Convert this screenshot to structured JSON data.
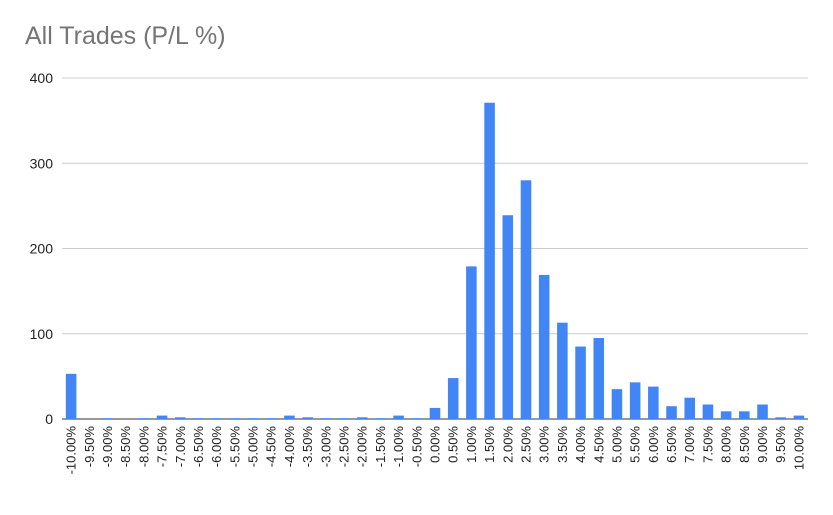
{
  "chart_data": {
    "type": "bar",
    "title": "All Trades (P/L %)",
    "xlabel": "",
    "ylabel": "",
    "ylim": [
      0,
      400
    ],
    "yticks": [
      "0",
      "100",
      "200",
      "300",
      "400"
    ],
    "grid": true,
    "bar_color": "#4285f4",
    "categories": [
      "-10.00%",
      "-9.50%",
      "-9.00%",
      "-8.50%",
      "-8.00%",
      "-7.50%",
      "-7.00%",
      "-6.50%",
      "-6.00%",
      "-5.50%",
      "-5.00%",
      "-4.50%",
      "-4.00%",
      "-3.50%",
      "-3.00%",
      "-2.50%",
      "-2.00%",
      "-1.50%",
      "-1.00%",
      "-0.50%",
      "0.00%",
      "0.50%",
      "1.00%",
      "1.50%",
      "2.00%",
      "2.50%",
      "3.00%",
      "3.50%",
      "4.00%",
      "4.50%",
      "5.00%",
      "5.50%",
      "6.00%",
      "6.50%",
      "7.00%",
      "7.50%",
      "8.00%",
      "8.50%",
      "9.00%",
      "9.50%",
      "10.00%"
    ],
    "values": [
      53,
      0,
      1,
      0,
      1,
      4,
      2,
      1,
      1,
      1,
      1,
      1,
      4,
      2,
      1,
      1,
      2,
      1,
      4,
      1,
      13,
      48,
      179,
      371,
      239,
      280,
      169,
      113,
      85,
      95,
      35,
      43,
      38,
      15,
      25,
      17,
      9,
      9,
      17,
      2,
      4
    ]
  }
}
